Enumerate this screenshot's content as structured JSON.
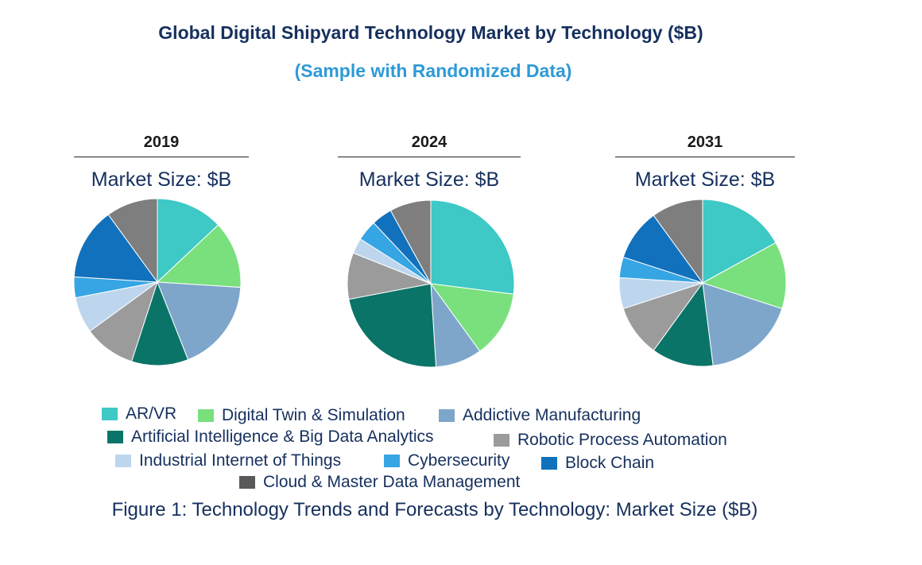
{
  "title": "Global Digital Shipyard Technology Market by Technology ($B)",
  "subtitle": "(Sample with Randomized Data)",
  "caption": "Figure 1: Technology Trends and Forecasts by Technology: Market Size ($B)",
  "colors": {
    "ar_vr": "#3ec8c6",
    "digital_twin": "#79e07d",
    "additive": "#7ea6cb",
    "ai": "#0b7468",
    "rpa": "#9b9b9b",
    "iiot": "#bdd6ee",
    "cyber": "#36a5e3",
    "blockchain": "#1171bc",
    "cloud": "#7e7e7e"
  },
  "chart_data": [
    {
      "type": "pie",
      "title": "2019",
      "subtitle": "Market Size: $B",
      "categories": [
        "AR/VR",
        "Digital Twin & Simulation",
        "Addictive Manufacturing",
        "Artificial Intelligence & Big Data Analytics",
        "Robotic Process Automation",
        "Industrial Internet of Things",
        "Cybersecurity",
        "Block Chain",
        "Cloud & Master Data Management"
      ],
      "values": [
        13,
        13,
        18,
        11,
        10,
        7,
        4,
        14,
        10
      ]
    },
    {
      "type": "pie",
      "title": "2024",
      "subtitle": "Market Size: $B",
      "categories": [
        "AR/VR",
        "Digital Twin & Simulation",
        "Addictive Manufacturing",
        "Artificial Intelligence & Big Data Analytics",
        "Robotic Process Automation",
        "Industrial Internet of Things",
        "Cybersecurity",
        "Block Chain",
        "Cloud & Master Data Management"
      ],
      "values": [
        27,
        13,
        9,
        23,
        9,
        3,
        4,
        4,
        8
      ]
    },
    {
      "type": "pie",
      "title": "2031",
      "subtitle": "Market Size: $B",
      "categories": [
        "AR/VR",
        "Digital Twin & Simulation",
        "Addictive Manufacturing",
        "Artificial Intelligence & Big Data Analytics",
        "Robotic Process Automation",
        "Industrial Internet of Things",
        "Cybersecurity",
        "Block Chain",
        "Cloud & Master Data Management"
      ],
      "values": [
        17,
        13,
        18,
        12,
        10,
        6,
        4,
        10,
        10
      ]
    }
  ],
  "legend": [
    {
      "label": "AR/VR",
      "color": "#3ec8c6"
    },
    {
      "label": "Digital Twin & Simulation",
      "color": "#79e07d"
    },
    {
      "label": "Addictive Manufacturing",
      "color": "#7ea6cb"
    },
    {
      "label": "Artificial Intelligence & Big Data Analytics",
      "color": "#0b7468"
    },
    {
      "label": "Robotic Process Automation",
      "color": "#9b9b9b"
    },
    {
      "label": "Industrial Internet of Things",
      "color": "#bdd6ee"
    },
    {
      "label": "Cybersecurity",
      "color": "#36a5e3"
    },
    {
      "label": "Block Chain",
      "color": "#1171bc"
    },
    {
      "label": "Cloud & Master Data Management",
      "color": "#595959"
    }
  ]
}
